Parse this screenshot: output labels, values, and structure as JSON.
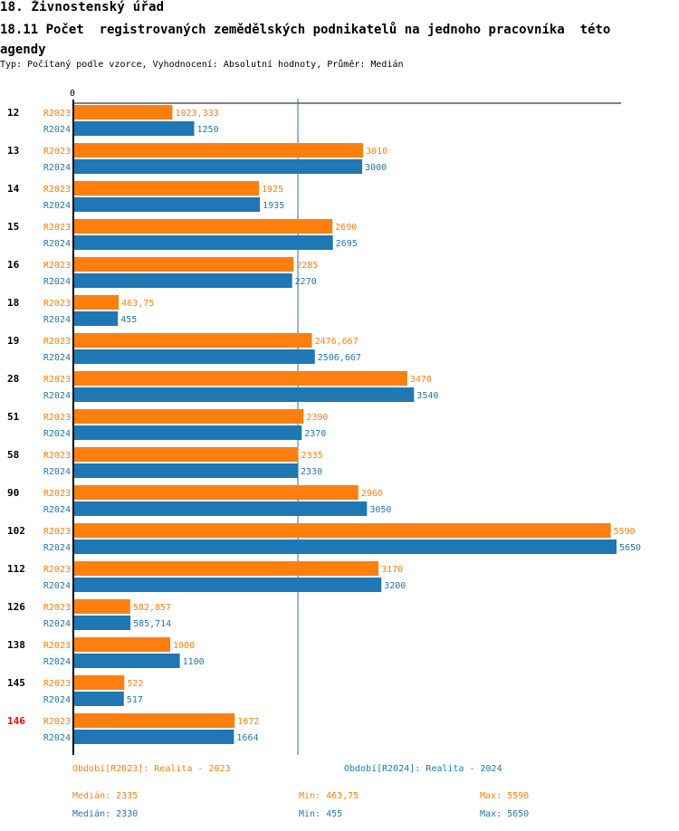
{
  "header": {
    "title": "18. Živnostenský úřad",
    "subtitle": "18.11 Počet  registrovaných zemědělských podnikatelů na jednoho pracovníka  této agendy",
    "description": "Typ: Počítaný podle vzorce, Vyhodnocení: Absolutní hodnoty, Průměr: Medián"
  },
  "colors": {
    "R2023": "#ff7f0e",
    "R2024": "#1f77b4",
    "highlight": "#ff0000",
    "axis": "#000000"
  },
  "chart_data": {
    "type": "bar",
    "orientation": "horizontal",
    "title": "18.11 Počet  registrovaných zemědělských podnikatelů na jednoho pracovníka  této agendy",
    "xlabel": "",
    "ylabel": "",
    "x_tick_labels": [
      "0"
    ],
    "xlim": [
      0,
      5650
    ],
    "categories": [
      "12",
      "13",
      "14",
      "15",
      "16",
      "18",
      "19",
      "28",
      "51",
      "58",
      "90",
      "102",
      "112",
      "126",
      "138",
      "145",
      "146"
    ],
    "highlighted_category": "146",
    "series": [
      {
        "name": "R2023",
        "values": [
          1023.333,
          3010,
          1925,
          2690,
          2285,
          463.75,
          2476.667,
          3470,
          2390,
          2335,
          2960,
          5590,
          3170,
          582.857,
          1000,
          522,
          1672
        ],
        "labels": [
          "1023,333",
          "3010",
          "1925",
          "2690",
          "2285",
          "463,75",
          "2476,667",
          "3470",
          "2390",
          "2335",
          "2960",
          "5590",
          "3170",
          "582,857",
          "1000",
          "522",
          "1672"
        ]
      },
      {
        "name": "R2024",
        "values": [
          1250,
          3000,
          1935,
          2695,
          2270,
          455,
          2506.667,
          3540,
          2370,
          2330,
          3050,
          5650,
          3200,
          585.714,
          1100,
          517,
          1664
        ],
        "labels": [
          "1250",
          "3000",
          "1935",
          "2695",
          "2270",
          "455",
          "2506,667",
          "3540",
          "2370",
          "2330",
          "3050",
          "5650",
          "3200",
          "585,714",
          "1100",
          "517",
          "1664"
        ]
      }
    ],
    "reference_line": {
      "series": "R2024",
      "type": "median",
      "value": 2330
    }
  },
  "legend": {
    "period_2023": "Období[R2023]: Realita - 2023",
    "period_2024": "Období[R2024]: Realita - 2024",
    "median_2023": "Medián: 2335",
    "min_2023": "Min: 463,75",
    "max_2023": "Max: 5590",
    "median_2024": "Medián: 2330",
    "min_2024": "Min: 455",
    "max_2024": "Max: 5650"
  }
}
